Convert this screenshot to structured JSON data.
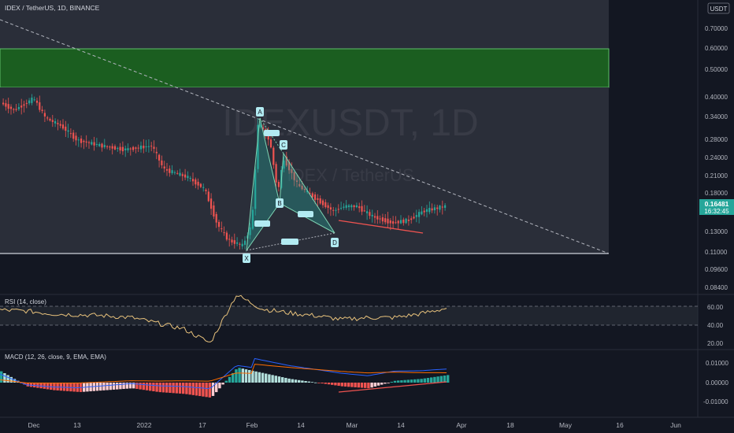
{
  "header": {
    "symbol_line": "IDEX / TetherUS, 1D, BINANCE",
    "currency": "USDT"
  },
  "watermark": {
    "big": "IDEXUSDT, 1D",
    "small": "IDEX / TetherUS"
  },
  "price_axis": {
    "ticks": [
      "0.70000",
      "0.60000",
      "0.50000",
      "0.40000",
      "0.34000",
      "0.28000",
      "0.24000",
      "0.21000",
      "0.18000",
      "0.15000",
      "0.13000",
      "0.11000",
      "0.09600",
      "0.08400"
    ],
    "last_price": "0.16481",
    "countdown": "16:32:45"
  },
  "rsi": {
    "label": "RSI (14, close)",
    "ticks": [
      "60.00",
      "40.00",
      "20.00"
    ]
  },
  "macd": {
    "label": "MACD (12, 26, close, 9, EMA, EMA)",
    "ticks": [
      "0.01000",
      "0.00000",
      "-0.01000"
    ]
  },
  "time_axis": [
    "Dec",
    "13",
    "2022",
    "17",
    "Feb",
    "14",
    "Mar",
    "14",
    "Apr",
    "18",
    "May",
    "16",
    "Jun"
  ],
  "harmonic_labels": [
    "X",
    "A",
    "B",
    "C",
    "D"
  ],
  "colors": {
    "bg": "#131722",
    "up": "#26a69a",
    "down": "#ef5350",
    "rsi": "#e8c27c",
    "macd": "#2962ff",
    "signal": "#ff6d00",
    "pattern": "#7ed4b3",
    "zone_green": "#1b5e20"
  },
  "chart_data": {
    "type": "candlestick",
    "y_scale": "log",
    "ylim": [
      0.075,
      0.9
    ],
    "x": [
      "2021-11-29",
      "2021-12-06",
      "2021-12-13",
      "2021-12-20",
      "2021-12-27",
      "2022-01-03",
      "2022-01-10",
      "2022-01-17",
      "2022-01-24",
      "2022-01-31",
      "2022-02-07",
      "2022-02-14",
      "2022-02-21",
      "2022-02-28",
      "2022-03-07",
      "2022-03-14",
      "2022-03-21",
      "2022-03-27"
    ],
    "close": [
      0.38,
      0.36,
      0.29,
      0.27,
      0.26,
      0.25,
      0.2,
      0.16,
      0.115,
      0.3,
      0.21,
      0.19,
      0.16,
      0.155,
      0.145,
      0.14,
      0.15,
      0.165
    ],
    "rsi": [
      56,
      55,
      52,
      51,
      50,
      48,
      42,
      36,
      21,
      72,
      57,
      53,
      50,
      46,
      48,
      48,
      52,
      58
    ],
    "macd_hist": [
      0.006,
      -0.002,
      -0.004,
      -0.005,
      -0.004,
      -0.003,
      -0.005,
      -0.006,
      -0.008,
      0.008,
      0.005,
      0.002,
      0.0,
      -0.002,
      -0.003,
      0.001,
      0.002,
      0.004
    ]
  }
}
